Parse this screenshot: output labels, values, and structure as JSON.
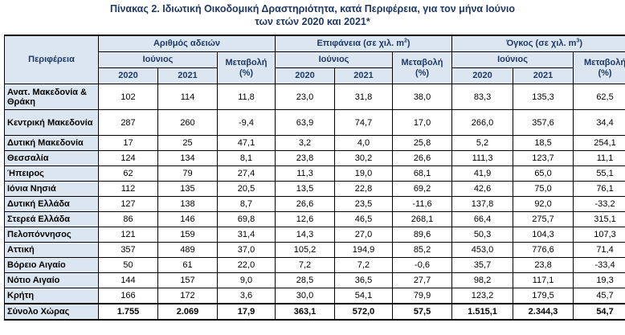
{
  "title": {
    "line1": "Πίνακας 2.  Ιδιωτική Οικοδομική Δραστηριότητα, κατά Περιφέρεια, για τον μήνα Ιούνιο",
    "line2": "των ετών 2020 και 2021*"
  },
  "header": {
    "region": "Περιφέρεια",
    "group1": "Αριθμός αδειών",
    "group2_text": "Επιφάνεια (σε χιλ. m",
    "group2_sup": "2",
    "group3_text": "Όγκος (σε χιλ. m",
    "group3_sup": "3",
    "close_paren": ")",
    "month": "Ιούνιος",
    "change_label": "Μεταβολή",
    "change_unit": "(%)",
    "year1": "2020",
    "year2": "2021"
  },
  "rows": [
    {
      "region": "Ανατ. Μακεδονία & Θράκη",
      "p20": "102",
      "p21": "114",
      "pch": "11,8",
      "a20": "23,0",
      "a21": "31,8",
      "ach": "38,0",
      "v20": "83,3",
      "v21": "135,3",
      "vch": "62,5"
    },
    {
      "region": "Κεντρική Μακεδονία",
      "p20": "287",
      "p21": "260",
      "pch": "-9,4",
      "a20": "63,9",
      "a21": "74,7",
      "ach": "17,0",
      "v20": "266,0",
      "v21": "357,6",
      "vch": "34,4"
    },
    {
      "region": "Δυτική Μακεδονία",
      "p20": "17",
      "p21": "25",
      "pch": "47,1",
      "a20": "3,2",
      "a21": "4,0",
      "ach": "25,8",
      "v20": "5,2",
      "v21": "18,5",
      "vch": "254,1"
    },
    {
      "region": "Θεσσαλία",
      "p20": "124",
      "p21": "134",
      "pch": "8,1",
      "a20": "23,8",
      "a21": "30,2",
      "ach": "26,6",
      "v20": "111,3",
      "v21": "123,7",
      "vch": "11,1"
    },
    {
      "region": "Ήπειρος",
      "p20": "62",
      "p21": "79",
      "pch": "27,4",
      "a20": "11,3",
      "a21": "19,0",
      "ach": "68,1",
      "v20": "41,9",
      "v21": "65,0",
      "vch": "55,1"
    },
    {
      "region": "Ιόνια Νησιά",
      "p20": "112",
      "p21": "135",
      "pch": "20,5",
      "a20": "13,5",
      "a21": "22,8",
      "ach": "69,2",
      "v20": "42,6",
      "v21": "75,0",
      "vch": "76,1"
    },
    {
      "region": "Δυτική Ελλάδα",
      "p20": "127",
      "p21": "138",
      "pch": "8,7",
      "a20": "26,6",
      "a21": "23,5",
      "ach": "-11,6",
      "v20": "137,8",
      "v21": "92,0",
      "vch": "-33,2"
    },
    {
      "region": "Στερεά Ελλάδα",
      "p20": "86",
      "p21": "146",
      "pch": "69,8",
      "a20": "12,6",
      "a21": "46,5",
      "ach": "268,1",
      "v20": "66,4",
      "v21": "275,7",
      "vch": "315,1"
    },
    {
      "region": "Πελοπόννησος",
      "p20": "121",
      "p21": "159",
      "pch": "31,4",
      "a20": "14,3",
      "a21": "27,0",
      "ach": "89,6",
      "v20": "50,3",
      "v21": "104,3",
      "vch": "107,3"
    },
    {
      "region": "Αττική",
      "p20": "357",
      "p21": "489",
      "pch": "37,0",
      "a20": "105,2",
      "a21": "194,9",
      "ach": "85,2",
      "v20": "453,0",
      "v21": "776,6",
      "vch": "71,4"
    },
    {
      "region": "Βόρειο Αιγαίο",
      "p20": "50",
      "p21": "61",
      "pch": "22,0",
      "a20": "7,2",
      "a21": "7,2",
      "ach": "-0,6",
      "v20": "35,7",
      "v21": "23,8",
      "vch": "-33,4"
    },
    {
      "region": "Νότιο Αιγαίο",
      "p20": "144",
      "p21": "157",
      "pch": "9,0",
      "a20": "28,5",
      "a21": "36,5",
      "ach": "27,7",
      "v20": "98,2",
      "v21": "117,1",
      "vch": "19,3"
    },
    {
      "region": "Κρήτη",
      "p20": "166",
      "p21": "172",
      "pch": "3,6",
      "a20": "30,0",
      "a21": "54,1",
      "ach": "79,9",
      "v20": "123,2",
      "v21": "179,5",
      "vch": "45,7"
    }
  ],
  "total": {
    "region": "Σύνολο Χώρας",
    "p20": "1.755",
    "p21": "2.069",
    "pch": "17,9",
    "a20": "363,1",
    "a21": "572,0",
    "ach": "57,5",
    "v20": "1.515,1",
    "v21": "2.344,3",
    "vch": "54,7"
  }
}
